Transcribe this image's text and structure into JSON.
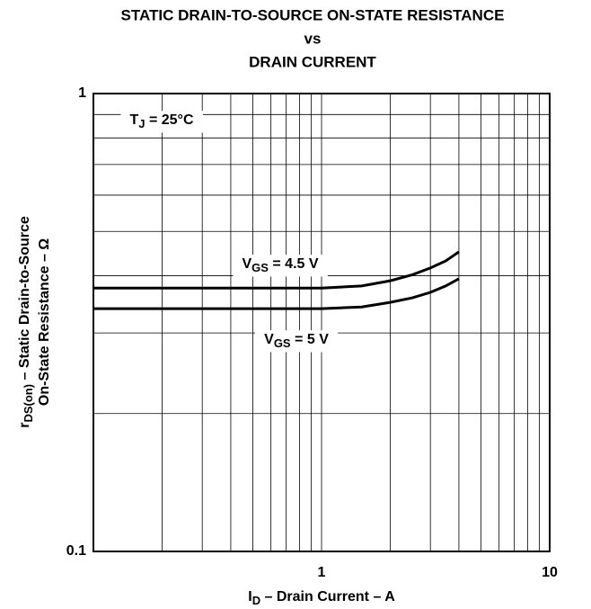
{
  "chart_data": {
    "type": "line",
    "title": [
      "STATIC DRAIN-TO-SOURCE ON-STATE RESISTANCE",
      "vs",
      "DRAIN CURRENT"
    ],
    "x_label": {
      "symbol": "I",
      "subscript": "D",
      "text": " – Drain Current – A"
    },
    "y_label": [
      {
        "symbol": "r",
        "subscript": "DS(on)",
        "text": " – Static Drain-to-Source"
      },
      {
        "text": "On-State Resistance – Ω"
      }
    ],
    "annotation": {
      "symbol": "T",
      "subscript": "J",
      "text": " = 25°C"
    },
    "x_log": true,
    "y_log": true,
    "grid": true,
    "xlim": [
      0.1,
      10
    ],
    "ylim": [
      0.1,
      1
    ],
    "xticks": [
      1,
      10
    ],
    "yticks": [
      0.1,
      1
    ],
    "xticks_minor": [
      0.2,
      0.3,
      0.4,
      0.5,
      0.6,
      0.7,
      0.8,
      0.9,
      2,
      3,
      4,
      5,
      6,
      7,
      8,
      9
    ],
    "yticks_minor": [
      0.2,
      0.3,
      0.4,
      0.5,
      0.6,
      0.7,
      0.8,
      0.9
    ],
    "x": [
      0.1,
      0.5,
      1,
      1.5,
      2,
      2.5,
      3,
      3.5,
      4
    ],
    "series": [
      {
        "label": {
          "symbol": "V",
          "subscript": "GS",
          "text": " = 4.5 V"
        },
        "color": "#000000",
        "values": [
          0.376,
          0.376,
          0.376,
          0.38,
          0.39,
          0.402,
          0.416,
          0.431,
          0.451
        ]
      },
      {
        "label": {
          "symbol": "V",
          "subscript": "GS",
          "text": " = 5 V"
        },
        "color": "#000000",
        "values": [
          0.339,
          0.339,
          0.339,
          0.342,
          0.35,
          0.358,
          0.368,
          0.38,
          0.394
        ]
      }
    ]
  }
}
